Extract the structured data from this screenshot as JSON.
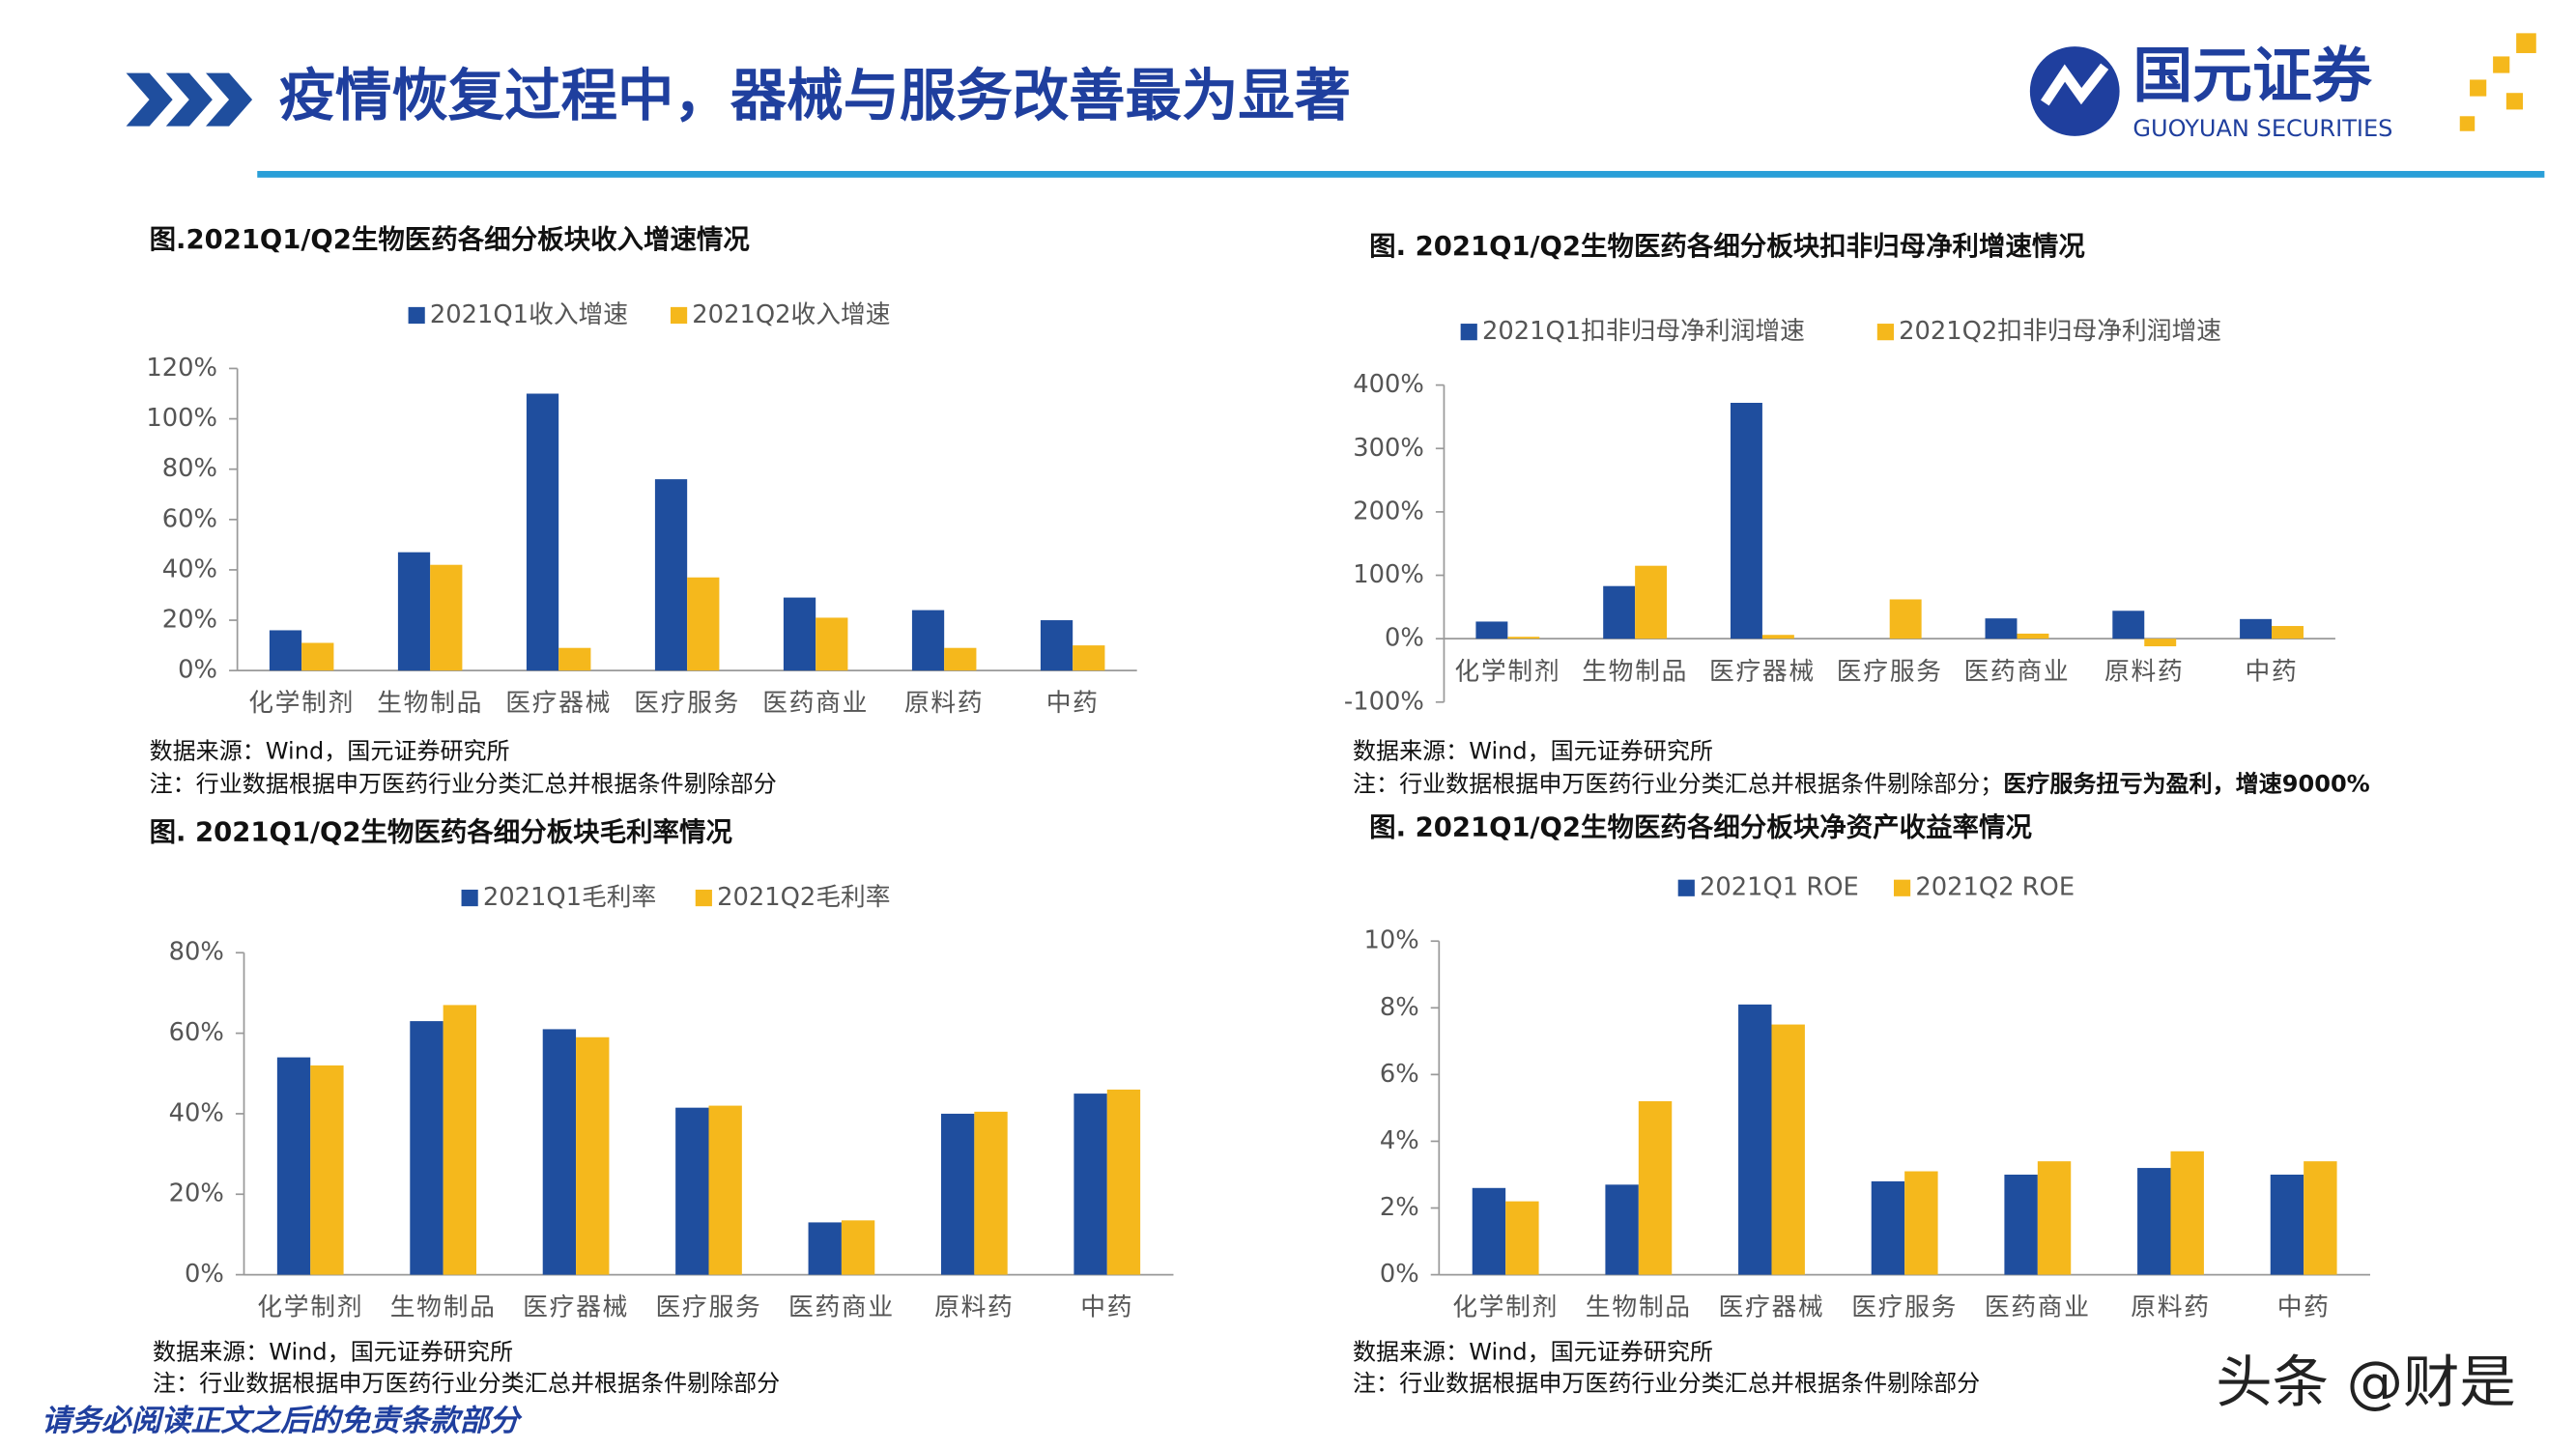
{
  "header": {
    "title": "疫情恢复过程中，器械与服务改善最为显著",
    "logo_cn": "国元证券",
    "logo_en": "GUOYUAN SECURITIES"
  },
  "footer": "请务必阅读正文之后的免责条款部分",
  "watermark": "头条 @财是",
  "chart_data": [
    {
      "type": "bar",
      "title": "图.2021Q1/Q2生物医药各细分板块收入增速情况",
      "categories": [
        "化学制剂",
        "生物制品",
        "医疗器械",
        "医疗服务",
        "医药商业",
        "原料药",
        "中药"
      ],
      "series": [
        {
          "name": "2021Q1收入增速",
          "color": "#1f4e9e",
          "values": [
            16,
            47,
            110,
            76,
            29,
            24,
            20
          ]
        },
        {
          "name": "2021Q2收入增速",
          "color": "#f5b81c",
          "values": [
            11,
            42,
            9,
            37,
            21,
            9,
            10
          ]
        }
      ],
      "ylim": [
        0,
        120
      ],
      "yticks": [
        {
          "value": 0,
          "label": "0%"
        },
        {
          "value": 20,
          "label": "20%"
        },
        {
          "value": 40,
          "label": "40%"
        },
        {
          "value": 60,
          "label": "60%"
        },
        {
          "value": 80,
          "label": "80%"
        },
        {
          "value": 100,
          "label": "100%"
        },
        {
          "value": 120,
          "label": "120%"
        }
      ],
      "grid": false,
      "source": "数据来源：Wind，国元证券研究所",
      "note": "注：行业数据根据申万医药行业分类汇总并根据条件剔除部分"
    },
    {
      "type": "bar",
      "title": "图. 2021Q1/Q2生物医药各细分板块扣非归母净利增速情况",
      "categories": [
        "化学制剂",
        "生物制品",
        "医疗器械",
        "医疗服务",
        "医药商业",
        "原料药",
        "中药"
      ],
      "series": [
        {
          "name": "2021Q1扣非归母净利润增速",
          "color": "#1f4e9e",
          "values": [
            27,
            83,
            372,
            null,
            32,
            44,
            31
          ]
        },
        {
          "name": "2021Q2扣非归母净利润增速",
          "color": "#f5b81c",
          "values": [
            3,
            115,
            6,
            62,
            8,
            -12,
            20
          ]
        }
      ],
      "ylim": [
        -100,
        400
      ],
      "yticks": [
        {
          "value": -100,
          "label": "-100%"
        },
        {
          "value": 0,
          "label": "0%"
        },
        {
          "value": 100,
          "label": "100%"
        },
        {
          "value": 200,
          "label": "200%"
        },
        {
          "value": 300,
          "label": "300%"
        },
        {
          "value": 400,
          "label": "400%"
        }
      ],
      "grid": false,
      "source": "数据来源：Wind，国元证券研究所",
      "note": "注：行业数据根据申万医药行业分类汇总并根据条件剔除部分；",
      "note_bold": "医疗服务扭亏为盈利，增速9000%"
    },
    {
      "type": "bar",
      "title": "图. 2021Q1/Q2生物医药各细分板块毛利率情况",
      "categories": [
        "化学制剂",
        "生物制品",
        "医疗器械",
        "医疗服务",
        "医药商业",
        "原料药",
        "中药"
      ],
      "series": [
        {
          "name": "2021Q1毛利率",
          "color": "#1f4e9e",
          "values": [
            54,
            63,
            61,
            41.5,
            13,
            40,
            45
          ]
        },
        {
          "name": "2021Q2毛利率",
          "color": "#f5b81c",
          "values": [
            52,
            67,
            59,
            42,
            13.5,
            40.5,
            46
          ]
        }
      ],
      "ylim": [
        0,
        80
      ],
      "yticks": [
        {
          "value": 0,
          "label": "0%"
        },
        {
          "value": 20,
          "label": "20%"
        },
        {
          "value": 40,
          "label": "40%"
        },
        {
          "value": 60,
          "label": "60%"
        },
        {
          "value": 80,
          "label": "80%"
        }
      ],
      "grid": false,
      "source": "数据来源：Wind，国元证券研究所",
      "note": "注：行业数据根据申万医药行业分类汇总并根据条件剔除部分"
    },
    {
      "type": "bar",
      "title": "图. 2021Q1/Q2生物医药各细分板块净资产收益率情况",
      "categories": [
        "化学制剂",
        "生物制品",
        "医疗器械",
        "医疗服务",
        "医药商业",
        "原料药",
        "中药"
      ],
      "series": [
        {
          "name": "2021Q1 ROE",
          "color": "#1f4e9e",
          "values": [
            2.6,
            2.7,
            8.1,
            2.8,
            3.0,
            3.2,
            3.0
          ]
        },
        {
          "name": "2021Q2 ROE",
          "color": "#f5b81c",
          "values": [
            2.2,
            5.2,
            7.5,
            3.1,
            3.4,
            3.7,
            3.4
          ]
        }
      ],
      "ylim": [
        0,
        10
      ],
      "yticks": [
        {
          "value": 0,
          "label": "0%"
        },
        {
          "value": 2,
          "label": "2%"
        },
        {
          "value": 4,
          "label": "4%"
        },
        {
          "value": 6,
          "label": "6%"
        },
        {
          "value": 8,
          "label": "8%"
        },
        {
          "value": 10,
          "label": "10%"
        }
      ],
      "grid": false,
      "source": "数据来源：Wind，国元证券研究所",
      "note": "注：行业数据根据申万医药行业分类汇总并根据条件剔除部分"
    }
  ]
}
